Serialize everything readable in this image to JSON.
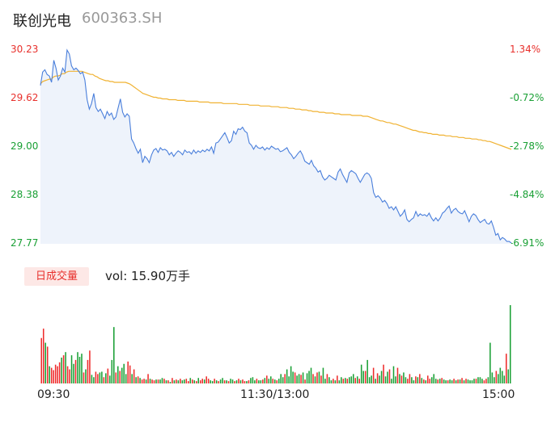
{
  "header": {
    "name": "联创光电",
    "code": "600363.SH"
  },
  "colors": {
    "up": "#ee2b2b",
    "down": "#1aa035",
    "price_line": "#4a7fdb",
    "avg_line": "#f0b232",
    "area_fill": "#eef3fb"
  },
  "price_axis": [
    "30.23",
    "29.62",
    "29.00",
    "28.38",
    "27.77"
  ],
  "pct_axis": [
    "1.34%",
    "-0.72%",
    "-2.78%",
    "-4.84%",
    "-6.91%"
  ],
  "volume": {
    "badge": "日成交量",
    "text": "vol: 15.90万手"
  },
  "time_axis": [
    "09:30",
    "11:30/13:00",
    "15:00"
  ],
  "chart_data": [
    {
      "type": "line",
      "ylim": [
        27.77,
        30.23
      ],
      "series": [
        {
          "values": [
            29.78,
            29.95,
            29.98,
            29.92,
            29.9,
            29.82,
            30.1,
            30.0,
            29.85,
            29.9,
            30.0,
            29.95,
            30.23,
            30.18,
            30.03,
            29.98,
            30.0,
            29.97,
            29.93,
            29.95,
            29.85,
            29.6,
            29.48,
            29.55,
            29.68,
            29.5,
            29.45,
            29.48,
            29.42,
            29.36,
            29.45,
            29.4,
            29.43,
            29.35,
            29.38,
            29.5,
            29.61,
            29.44,
            29.38,
            29.42,
            29.39,
            29.1,
            29.05,
            28.98,
            28.92,
            28.97,
            28.8,
            28.88,
            28.85,
            28.8,
            28.9,
            28.96,
            28.98,
            28.93,
            28.99,
            28.96,
            28.97,
            28.95,
            28.9,
            28.93,
            28.88,
            28.92,
            28.95,
            28.93,
            28.9,
            28.96,
            28.93,
            28.94,
            28.91,
            28.96,
            28.92,
            28.95,
            28.93,
            28.96,
            28.94,
            28.97,
            28.95,
            29.0,
            28.92,
            29.05,
            29.06,
            29.1,
            29.14,
            29.18,
            29.12,
            29.05,
            29.08,
            29.2,
            29.16,
            29.23,
            29.22,
            29.25,
            29.2,
            29.18,
            29.05,
            29.02,
            28.97,
            29.02,
            28.99,
            28.98,
            29.0,
            28.96,
            28.99,
            28.97,
            29.01,
            28.99,
            28.97,
            28.98,
            28.94,
            28.95,
            28.97,
            28.99,
            28.93,
            28.9,
            28.85,
            28.88,
            28.92,
            28.95,
            28.9,
            28.82,
            28.8,
            28.78,
            28.83,
            28.76,
            28.73,
            28.68,
            28.7,
            28.62,
            28.58,
            28.6,
            28.64,
            28.62,
            28.6,
            28.58,
            28.68,
            28.72,
            28.65,
            28.6,
            28.55,
            28.67,
            28.7,
            28.68,
            28.66,
            28.6,
            28.55,
            28.6,
            28.65,
            28.67,
            28.65,
            28.6,
            28.42,
            28.36,
            28.38,
            28.35,
            28.3,
            28.32,
            28.28,
            28.22,
            28.24,
            28.2,
            28.24,
            28.18,
            28.12,
            28.15,
            28.2,
            28.08,
            28.05,
            28.08,
            28.1,
            28.18,
            28.12,
            28.15,
            28.13,
            28.14,
            28.12,
            28.16,
            28.1,
            28.06,
            28.1,
            28.06,
            28.1,
            28.16,
            28.18,
            28.22,
            28.25,
            28.16,
            28.2,
            28.22,
            28.18,
            28.16,
            28.15,
            28.19,
            28.12,
            28.05,
            28.12,
            28.15,
            28.13,
            28.08,
            28.04,
            28.06,
            28.08,
            28.03,
            28.02,
            28.06,
            27.98,
            27.88,
            27.9,
            27.82,
            27.85,
            27.83,
            27.8,
            27.8,
            27.78
          ]
        },
        {
          "values": [
            29.8,
            29.83,
            29.84,
            29.85,
            29.86,
            29.86,
            29.89,
            29.9,
            29.9,
            29.91,
            29.93,
            29.93,
            29.95,
            29.96,
            29.96,
            29.96,
            29.96,
            29.96,
            29.96,
            29.96,
            29.95,
            29.94,
            29.93,
            29.92,
            29.92,
            29.9,
            29.89,
            29.87,
            29.86,
            29.85,
            29.84,
            29.84,
            29.83,
            29.83,
            29.82,
            29.82,
            29.82,
            29.82,
            29.82,
            29.82,
            29.81,
            29.8,
            29.78,
            29.76,
            29.74,
            29.72,
            29.7,
            29.68,
            29.67,
            29.66,
            29.65,
            29.64,
            29.63,
            29.63,
            29.62,
            29.62,
            29.61,
            29.61,
            29.61,
            29.6,
            29.6,
            29.6,
            29.6,
            29.59,
            29.59,
            29.59,
            29.59,
            29.58,
            29.58,
            29.58,
            29.58,
            29.58,
            29.58,
            29.57,
            29.57,
            29.57,
            29.57,
            29.57,
            29.56,
            29.56,
            29.56,
            29.56,
            29.56,
            29.56,
            29.55,
            29.55,
            29.55,
            29.55,
            29.55,
            29.55,
            29.55,
            29.54,
            29.54,
            29.54,
            29.54,
            29.54,
            29.53,
            29.53,
            29.53,
            29.53,
            29.53,
            29.52,
            29.52,
            29.52,
            29.52,
            29.52,
            29.51,
            29.51,
            29.51,
            29.51,
            29.5,
            29.5,
            29.5,
            29.5,
            29.49,
            29.49,
            29.49,
            29.48,
            29.48,
            29.48,
            29.47,
            29.47,
            29.47,
            29.46,
            29.46,
            29.45,
            29.45,
            29.45,
            29.44,
            29.44,
            29.44,
            29.43,
            29.43,
            29.43,
            29.43,
            29.42,
            29.42,
            29.42,
            29.41,
            29.41,
            29.41,
            29.41,
            29.41,
            29.4,
            29.4,
            29.4,
            29.4,
            29.4,
            29.39,
            29.39,
            29.39,
            29.38,
            29.37,
            29.36,
            29.35,
            29.34,
            29.33,
            29.33,
            29.32,
            29.31,
            29.31,
            29.3,
            29.29,
            29.29,
            29.28,
            29.27,
            29.26,
            29.25,
            29.24,
            29.23,
            29.22,
            29.21,
            29.21,
            29.2,
            29.19,
            29.19,
            29.18,
            29.18,
            29.17,
            29.17,
            29.16,
            29.16,
            29.16,
            29.15,
            29.15,
            29.15,
            29.14,
            29.14,
            29.14,
            29.13,
            29.13,
            29.13,
            29.12,
            29.12,
            29.12,
            29.11,
            29.11,
            29.11,
            29.1,
            29.1,
            29.1,
            29.09,
            29.09,
            29.08,
            29.08,
            29.07,
            29.07,
            29.06,
            29.05,
            29.04,
            29.03,
            29.02,
            29.01,
            29.0,
            28.99,
            28.98,
            28.97
          ]
        }
      ]
    },
    {
      "type": "bar",
      "ylim": [
        0,
        100
      ],
      "values": [
        58,
        70,
        52,
        47,
        22,
        20,
        17,
        24,
        22,
        27,
        33,
        36,
        40,
        22,
        18,
        36,
        25,
        30,
        40,
        34,
        38,
        14,
        18,
        30,
        42,
        11,
        8,
        15,
        12,
        14,
        15,
        8,
        13,
        19,
        10,
        30,
        72,
        14,
        22,
        16,
        20,
        25,
        12,
        28,
        23,
        12,
        18,
        8,
        9,
        7,
        5,
        6,
        5,
        12,
        6,
        5,
        4,
        5,
        5,
        5,
        7,
        6,
        4,
        4,
        2,
        7,
        4,
        5,
        4,
        6,
        4,
        5,
        6,
        3,
        7,
        5,
        4,
        3,
        7,
        4,
        6,
        5,
        9,
        6,
        4,
        3,
        6,
        4,
        3,
        5,
        7,
        4,
        4,
        3,
        6,
        5,
        3,
        4,
        6,
        4,
        5,
        3,
        3,
        4,
        7,
        8,
        4,
        6,
        4,
        4,
        5,
        7,
        10,
        6,
        9,
        6,
        5,
        4,
        6,
        12,
        8,
        12,
        18,
        9,
        22,
        15,
        14,
        10,
        12,
        11,
        14,
        5,
        13,
        16,
        20,
        12,
        9,
        14,
        15,
        10,
        20,
        6,
        12,
        8,
        4,
        6,
        4,
        10,
        4,
        8,
        6,
        7,
        6,
        8,
        9,
        12,
        7,
        9,
        6,
        24,
        16,
        16,
        30,
        8,
        10,
        20,
        6,
        13,
        10,
        16,
        24,
        9,
        15,
        18,
        6,
        22,
        9,
        20,
        12,
        10,
        14,
        8,
        6,
        12,
        8,
        4,
        9,
        8,
        12,
        7,
        5,
        4,
        10,
        6,
        8,
        12,
        6,
        5,
        6,
        7,
        5,
        4,
        4,
        5,
        4,
        6,
        4,
        5,
        5,
        7,
        4,
        6,
        5,
        4,
        4,
        6,
        6,
        8,
        8,
        6,
        4,
        6,
        8,
        52,
        14,
        8,
        16,
        12,
        20,
        16,
        10,
        38,
        18,
        100
      ],
      "colors": [
        "up",
        "up",
        "down",
        "up",
        "down",
        "up",
        "up",
        "up",
        "up",
        "up",
        "down",
        "up",
        "down",
        "up",
        "up",
        "down",
        "down",
        "up",
        "down",
        "down",
        "down",
        "up",
        "down",
        "up",
        "up",
        "down",
        "down",
        "up",
        "up",
        "down",
        "down",
        "up",
        "down",
        "up",
        "down",
        "down",
        "down",
        "up",
        "down",
        "up",
        "down",
        "down",
        "down",
        "up",
        "up",
        "down",
        "up",
        "down",
        "up",
        "down",
        "up",
        "up",
        "down",
        "up",
        "down",
        "up",
        "up",
        "down",
        "up",
        "down",
        "down",
        "up",
        "down",
        "up",
        "down",
        "up",
        "down",
        "up",
        "down",
        "up",
        "down",
        "down",
        "up",
        "up",
        "down",
        "up",
        "down",
        "up",
        "down",
        "up",
        "up",
        "down",
        "up",
        "up",
        "down",
        "down",
        "up",
        "down",
        "up",
        "down",
        "down",
        "up",
        "down",
        "up",
        "down",
        "down",
        "up",
        "down",
        "up",
        "down",
        "up",
        "up",
        "down",
        "up",
        "down",
        "down",
        "down",
        "up",
        "down",
        "down",
        "up",
        "down",
        "up",
        "down",
        "down",
        "up",
        "down",
        "up",
        "down",
        "down",
        "down",
        "up",
        "down",
        "down",
        "down",
        "down",
        "up",
        "down",
        "down",
        "up",
        "down",
        "up",
        "down",
        "down",
        "down",
        "up",
        "down",
        "up",
        "down",
        "up",
        "down",
        "down",
        "up",
        "down",
        "down",
        "up",
        "down",
        "up",
        "down",
        "down",
        "up",
        "down",
        "up",
        "down",
        "down",
        "down",
        "up",
        "down",
        "up",
        "down",
        "down",
        "up",
        "down",
        "down",
        "down",
        "up",
        "down",
        "up",
        "down",
        "down",
        "up",
        "down",
        "down",
        "up",
        "down",
        "down",
        "down",
        "up",
        "down",
        "up",
        "down",
        "down",
        "up",
        "up",
        "down",
        "down",
        "up",
        "down",
        "up",
        "down",
        "up",
        "down",
        "up",
        "up",
        "down",
        "down",
        "down",
        "up",
        "down",
        "up",
        "down",
        "down",
        "up",
        "down",
        "down",
        "up",
        "down",
        "up",
        "down",
        "up",
        "down",
        "up",
        "down",
        "down",
        "down",
        "down",
        "up",
        "down",
        "down",
        "down",
        "up",
        "up",
        "down",
        "down",
        "down",
        "down",
        "up",
        "down",
        "down",
        "down",
        "down",
        "up",
        "down"
      ]
    }
  ]
}
